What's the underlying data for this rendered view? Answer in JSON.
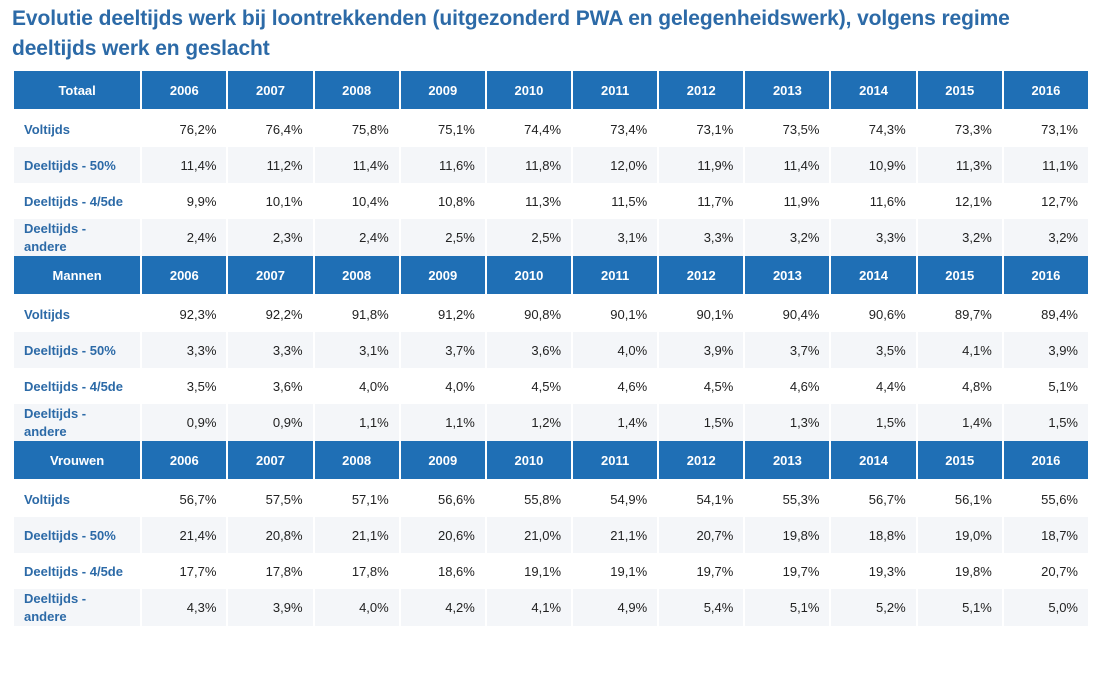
{
  "title": "Evolutie deeltijds werk bij loontrekkenden (uitgezonderd PWA en gelegenheidswerk), volgens regime deeltijds werk en geslacht",
  "years": [
    "2006",
    "2007",
    "2008",
    "2009",
    "2010",
    "2011",
    "2012",
    "2013",
    "2014",
    "2015",
    "2016"
  ],
  "sections": [
    {
      "label": "Totaal",
      "rows": [
        {
          "label": "Voltijds",
          "values": [
            "76,2%",
            "76,4%",
            "75,8%",
            "75,1%",
            "74,4%",
            "73,4%",
            "73,1%",
            "73,5%",
            "74,3%",
            "73,3%",
            "73,1%"
          ]
        },
        {
          "label": "Deeltijds - 50%",
          "values": [
            "11,4%",
            "11,2%",
            "11,4%",
            "11,6%",
            "11,8%",
            "12,0%",
            "11,9%",
            "11,4%",
            "10,9%",
            "11,3%",
            "11,1%"
          ]
        },
        {
          "label": "Deeltijds - 4/5de",
          "values": [
            "9,9%",
            "10,1%",
            "10,4%",
            "10,8%",
            "11,3%",
            "11,5%",
            "11,7%",
            "11,9%",
            "11,6%",
            "12,1%",
            "12,7%"
          ]
        },
        {
          "label": "Deeltijds - andere",
          "values": [
            "2,4%",
            "2,3%",
            "2,4%",
            "2,5%",
            "2,5%",
            "3,1%",
            "3,3%",
            "3,2%",
            "3,3%",
            "3,2%",
            "3,2%"
          ]
        }
      ]
    },
    {
      "label": "Mannen",
      "rows": [
        {
          "label": "Voltijds",
          "values": [
            "92,3%",
            "92,2%",
            "91,8%",
            "91,2%",
            "90,8%",
            "90,1%",
            "90,1%",
            "90,4%",
            "90,6%",
            "89,7%",
            "89,4%"
          ]
        },
        {
          "label": "Deeltijds - 50%",
          "values": [
            "3,3%",
            "3,3%",
            "3,1%",
            "3,7%",
            "3,6%",
            "4,0%",
            "3,9%",
            "3,7%",
            "3,5%",
            "4,1%",
            "3,9%"
          ]
        },
        {
          "label": "Deeltijds - 4/5de",
          "values": [
            "3,5%",
            "3,6%",
            "4,0%",
            "4,0%",
            "4,5%",
            "4,6%",
            "4,5%",
            "4,6%",
            "4,4%",
            "4,8%",
            "5,1%"
          ]
        },
        {
          "label": "Deeltijds - andere",
          "values": [
            "0,9%",
            "0,9%",
            "1,1%",
            "1,1%",
            "1,2%",
            "1,4%",
            "1,5%",
            "1,3%",
            "1,5%",
            "1,4%",
            "1,5%"
          ]
        }
      ]
    },
    {
      "label": "Vrouwen",
      "rows": [
        {
          "label": "Voltijds",
          "values": [
            "56,7%",
            "57,5%",
            "57,1%",
            "56,6%",
            "55,8%",
            "54,9%",
            "54,1%",
            "55,3%",
            "56,7%",
            "56,1%",
            "55,6%"
          ]
        },
        {
          "label": "Deeltijds - 50%",
          "values": [
            "21,4%",
            "20,8%",
            "21,1%",
            "20,6%",
            "21,0%",
            "21,1%",
            "20,7%",
            "19,8%",
            "18,8%",
            "19,0%",
            "18,7%"
          ]
        },
        {
          "label": "Deeltijds - 4/5de",
          "values": [
            "17,7%",
            "17,8%",
            "17,8%",
            "18,6%",
            "19,1%",
            "19,1%",
            "19,7%",
            "19,7%",
            "19,3%",
            "19,8%",
            "20,7%"
          ]
        },
        {
          "label": "Deeltijds - andere",
          "values": [
            "4,3%",
            "3,9%",
            "4,0%",
            "4,2%",
            "4,1%",
            "4,9%",
            "5,4%",
            "5,1%",
            "5,2%",
            "5,1%",
            "5,0%"
          ]
        }
      ]
    }
  ],
  "colors": {
    "header_bg": "#1f6fb5",
    "label_text": "#2c6aa7",
    "stripe": "#f4f6f9"
  }
}
